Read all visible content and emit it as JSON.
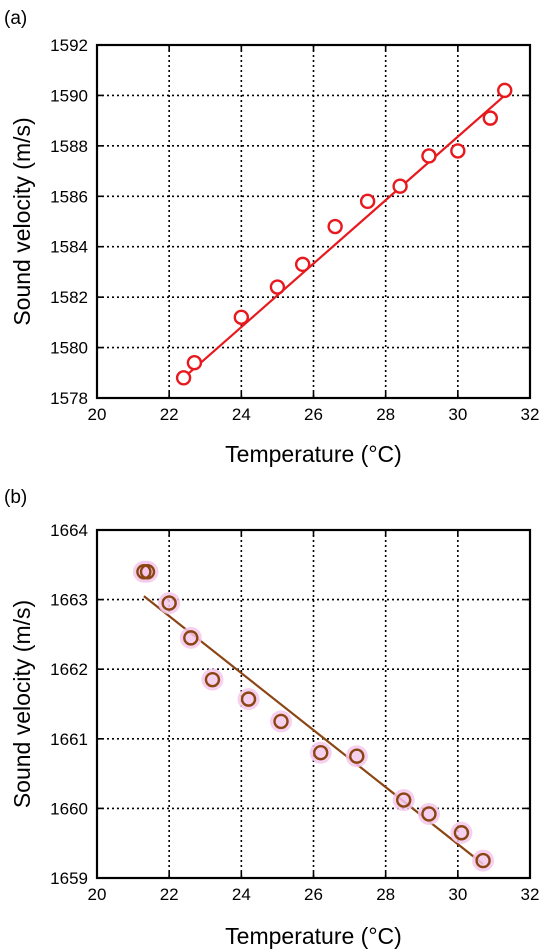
{
  "chart_data": [
    {
      "type": "scatter",
      "panel_label": "(a)",
      "xlabel": "Temperature (°C)",
      "ylabel": "Sound velocity (m/s)",
      "xlim": [
        20,
        32
      ],
      "ylim": [
        1578,
        1592
      ],
      "xticks": [
        20,
        22,
        24,
        26,
        28,
        30,
        32
      ],
      "yticks": [
        1578,
        1580,
        1582,
        1584,
        1586,
        1588,
        1590,
        1592
      ],
      "grid": true,
      "color": "#e8191e",
      "marker_fill": "#ffffff",
      "halo": "",
      "x": [
        22.4,
        22.7,
        24.0,
        25.0,
        25.7,
        26.6,
        27.5,
        28.4,
        29.2,
        30.0,
        30.9,
        31.3
      ],
      "y": [
        1578.8,
        1579.4,
        1581.2,
        1582.4,
        1583.3,
        1584.8,
        1585.8,
        1586.4,
        1587.6,
        1587.8,
        1589.1,
        1590.2
      ],
      "fit": {
        "x": [
          22.4,
          31.3
        ],
        "y": [
          1578.8,
          1590.0
        ]
      }
    },
    {
      "type": "scatter",
      "panel_label": "(b)",
      "xlabel": "Temperature (°C)",
      "ylabel": "Sound velocity (m/s)",
      "xlim": [
        20,
        32
      ],
      "ylim": [
        1659,
        1664
      ],
      "xticks": [
        20,
        22,
        24,
        26,
        28,
        30,
        32
      ],
      "yticks": [
        1659,
        1660,
        1661,
        1662,
        1663,
        1664
      ],
      "grid": true,
      "color": "#8b4513",
      "marker_fill": "#ffffff",
      "halo": "#f4c8ec",
      "x": [
        21.3,
        21.4,
        22.0,
        22.6,
        23.2,
        24.2,
        25.1,
        26.2,
        27.2,
        28.5,
        29.2,
        30.1,
        30.7
      ],
      "y": [
        1663.4,
        1663.4,
        1662.95,
        1662.45,
        1661.85,
        1661.57,
        1661.25,
        1660.8,
        1660.75,
        1660.12,
        1659.92,
        1659.65,
        1659.25
      ],
      "fit": {
        "x": [
          21.3,
          30.7
        ],
        "y": [
          1663.05,
          1659.2
        ]
      }
    }
  ]
}
